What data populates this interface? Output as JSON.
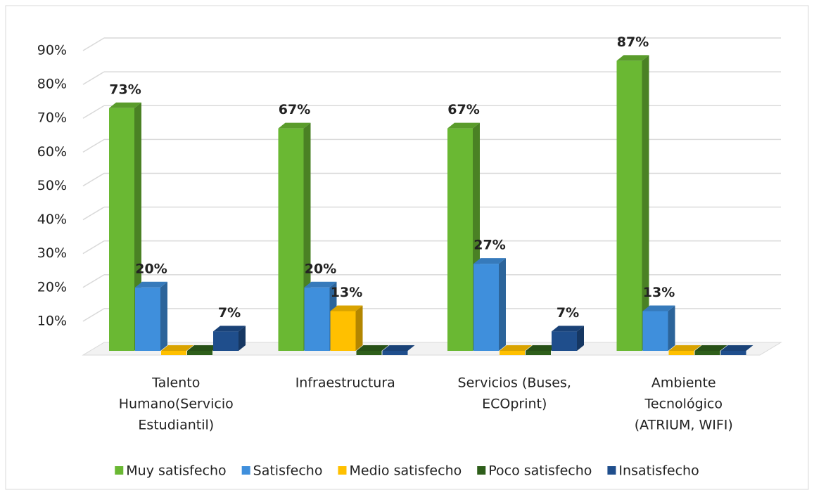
{
  "chart_data": {
    "type": "bar3d",
    "categories": [
      [
        "Talento",
        "Humano(Servicio",
        "Estudiantil)"
      ],
      [
        "Infraestructura"
      ],
      [
        "Servicios (Buses,",
        "ECOprint)"
      ],
      [
        "Ambiente",
        "Tecnológico",
        "(ATRIUM, WIFI)"
      ]
    ],
    "series": [
      {
        "name": "Muy satisfecho",
        "color": "#6ab833",
        "values": [
          73,
          67,
          67,
          87
        ],
        "value_labels": [
          "73%",
          "67%",
          "67%",
          "87%"
        ]
      },
      {
        "name": "Satisfecho",
        "color": "#3f8fdc",
        "values": [
          20,
          20,
          27,
          13
        ],
        "value_labels": [
          "20%",
          "20%",
          "27%",
          "13%"
        ]
      },
      {
        "name": "Medio satisfecho",
        "color": "#ffc000",
        "values": [
          0,
          13,
          0,
          0
        ],
        "value_labels": [
          null,
          "13%",
          null,
          null
        ]
      },
      {
        "name": "Poco satisfecho",
        "color": "#2e5e1a",
        "values": [
          0,
          0,
          0,
          0
        ],
        "value_labels": [
          null,
          null,
          null,
          null
        ]
      },
      {
        "name": "Insatisfecho",
        "color": "#1f4e8c",
        "values": [
          7,
          0,
          7,
          0
        ],
        "value_labels": [
          "7%",
          null,
          "7%",
          null
        ]
      }
    ],
    "ylim": [
      0,
      90
    ],
    "yticks": [
      {
        "value": 10,
        "label": "10%"
      },
      {
        "value": 20,
        "label": "20%"
      },
      {
        "value": 30,
        "label": "30%"
      },
      {
        "value": 40,
        "label": "40%"
      },
      {
        "value": 50,
        "label": "50%"
      },
      {
        "value": 60,
        "label": "60%"
      },
      {
        "value": 70,
        "label": "70%"
      },
      {
        "value": 80,
        "label": "80%"
      },
      {
        "value": 90,
        "label": "90%"
      }
    ],
    "grid": true,
    "legend": "bottom"
  }
}
